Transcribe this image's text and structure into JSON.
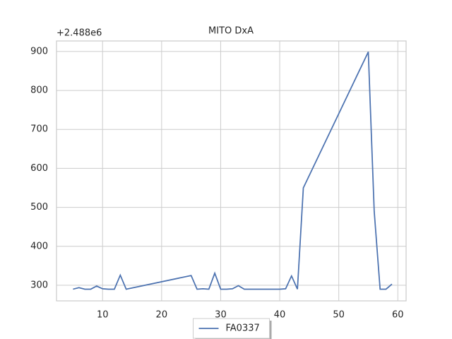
{
  "chart_data": {
    "type": "line",
    "title": "MITO DxA",
    "offset_label": "+2.488e6",
    "x": [
      5,
      6,
      7,
      8,
      9,
      10,
      11,
      12,
      13,
      14,
      25,
      26,
      27,
      28,
      29,
      30,
      31,
      32,
      33,
      34,
      35,
      36,
      37,
      38,
      39,
      40,
      41,
      42,
      43,
      44,
      55,
      56,
      57,
      58,
      59
    ],
    "series": [
      {
        "name": "FA0337",
        "color": "#4c72b0",
        "values": [
          290,
          294,
          290,
          290,
          298,
          291,
          290,
          290,
          326,
          290,
          325,
          290,
          291,
          290,
          331,
          290,
          290,
          291,
          299,
          290,
          290,
          290,
          290,
          290,
          290,
          290,
          291,
          324,
          290,
          550,
          899,
          490,
          290,
          290,
          303
        ]
      }
    ],
    "xlim": [
      2.2,
      61.4
    ],
    "ylim": [
      260,
      927
    ],
    "xticks": [
      10,
      20,
      30,
      40,
      50,
      60
    ],
    "yticks": [
      300,
      400,
      500,
      600,
      700,
      800,
      900
    ],
    "grid": true,
    "legend": "lower center"
  }
}
